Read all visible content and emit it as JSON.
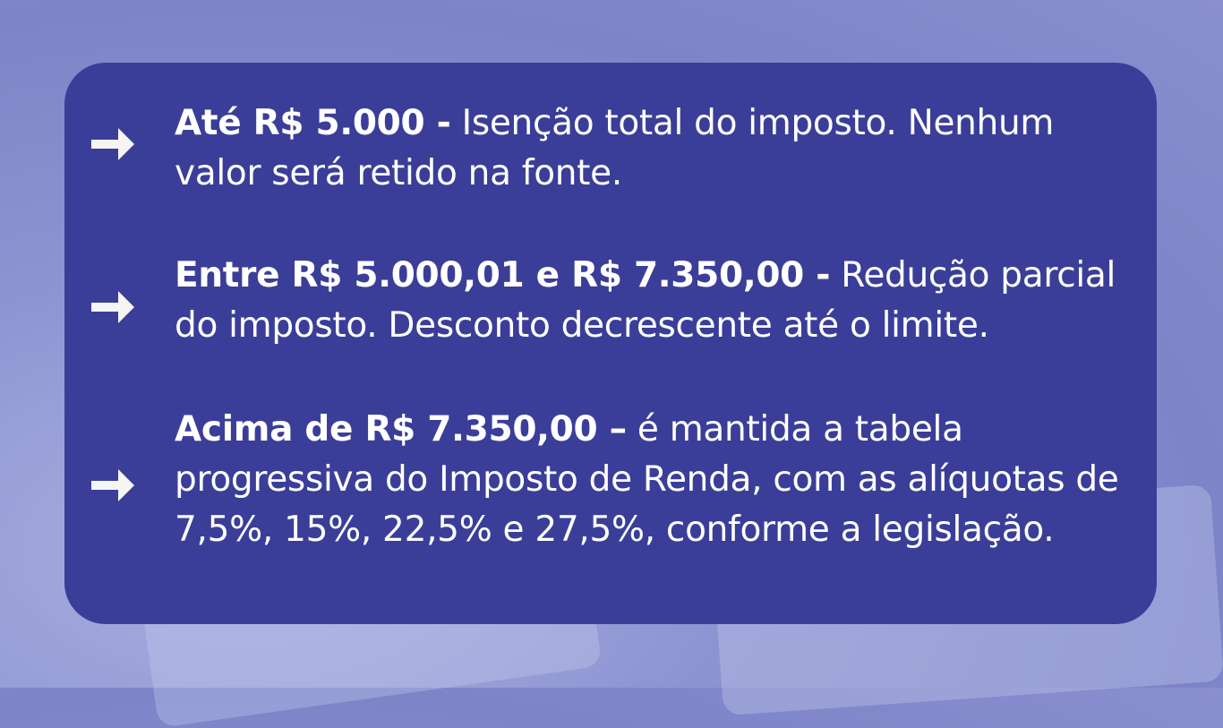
{
  "items": [
    {
      "bold": "Até R$ 5.000 -",
      "text": " Isenção total do imposto. Nenhum valor será retido na fonte."
    },
    {
      "bold": "Entre R$ 5.000,01 e R$ 7.350,00 -",
      "text": " Redução parcial do imposto. Desconto decrescente até o limite."
    },
    {
      "bold": "Acima de R$ 7.350,00 –",
      "text": " é mantida a tabela progressiva do Imposto de Renda, com as alíquotas de 7,5%, 15%, 22,5% e 27,5%, conforme a legislação."
    }
  ],
  "colors": {
    "panel": "#3b3e98",
    "arrow": "#f5f5f3",
    "background": "#8f95d2"
  }
}
